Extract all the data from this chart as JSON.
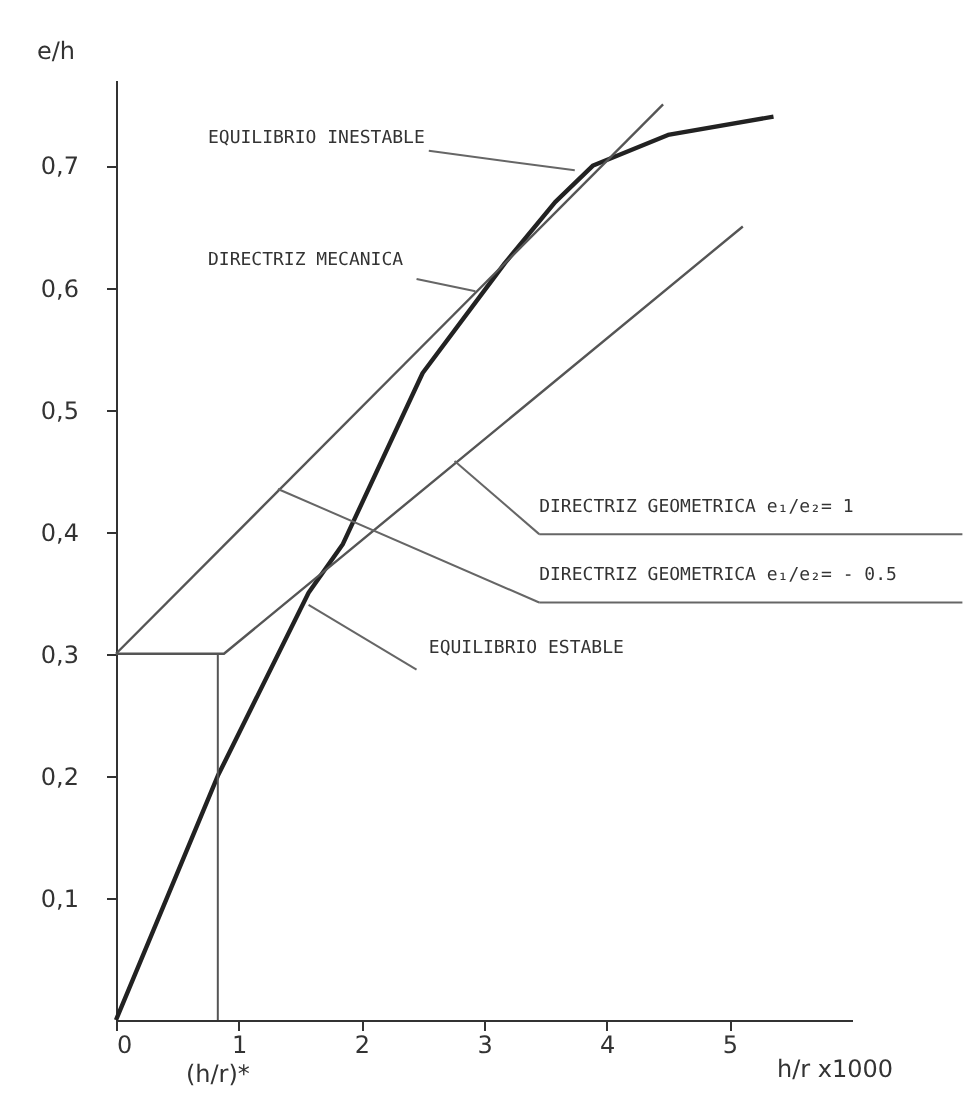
{
  "chart_data": {
    "type": "line",
    "xlabel": "h/r x1000",
    "ylabel": "e/h",
    "xlim": [
      0,
      6
    ],
    "ylim": [
      0,
      0.77
    ],
    "xticks": [
      0,
      1,
      2,
      3,
      4,
      5
    ],
    "yticks": [
      {
        "value": 0.1,
        "label": "0,1"
      },
      {
        "value": 0.2,
        "label": "0,2"
      },
      {
        "value": 0.3,
        "label": "0,3"
      },
      {
        "value": 0.4,
        "label": "0,4"
      },
      {
        "value": 0.5,
        "label": "0,5"
      },
      {
        "value": 0.6,
        "label": "0,6"
      },
      {
        "value": 0.7,
        "label": "0,7"
      }
    ],
    "grid": false,
    "marker": "none",
    "line_style": "solid",
    "series": [
      {
        "color": "#222222",
        "x": [
          0,
          0.83,
          1.57,
          1.85,
          2.5,
          3.17,
          3.58,
          3.89,
          4.5,
          5.36
        ],
        "values": [
          0,
          0.2,
          0.35,
          0.39,
          0.53,
          0.62,
          0.67,
          0.7,
          0.725,
          0.74
        ]
      },
      {
        "color": "#555555",
        "x": [
          0,
          4.46
        ],
        "values": [
          0.3,
          0.75
        ]
      },
      {
        "color": "#555555",
        "x": [
          0,
          0.88,
          5.11
        ],
        "values": [
          0.3,
          0.3,
          0.65
        ]
      },
      {
        "color": "#555555",
        "x": [
          0.83,
          0.83
        ],
        "values": [
          0,
          0.3
        ]
      }
    ],
    "annotations": [
      {
        "text": "EQUILIBRIO INESTABLE",
        "x": 3.74,
        "y": 0.696
      },
      {
        "text": "DIRECTRIZ MECANICA",
        "x": 2.93,
        "y": 0.597
      },
      {
        "text": "DIRECTRIZ GEOMETRICA e₁/e₂= 1",
        "x": 2.76,
        "y": 0.458
      },
      {
        "text": "DIRECTRIZ GEOMETRICA e₁/e₂= - 0.5",
        "x": 1.32,
        "y": 0.435
      },
      {
        "text": "EQUILIBRIO ESTABLE",
        "x": 1.57,
        "y": 0.34
      },
      {
        "text": "(h/r)*",
        "x": 0.83,
        "y": 0
      }
    ]
  }
}
